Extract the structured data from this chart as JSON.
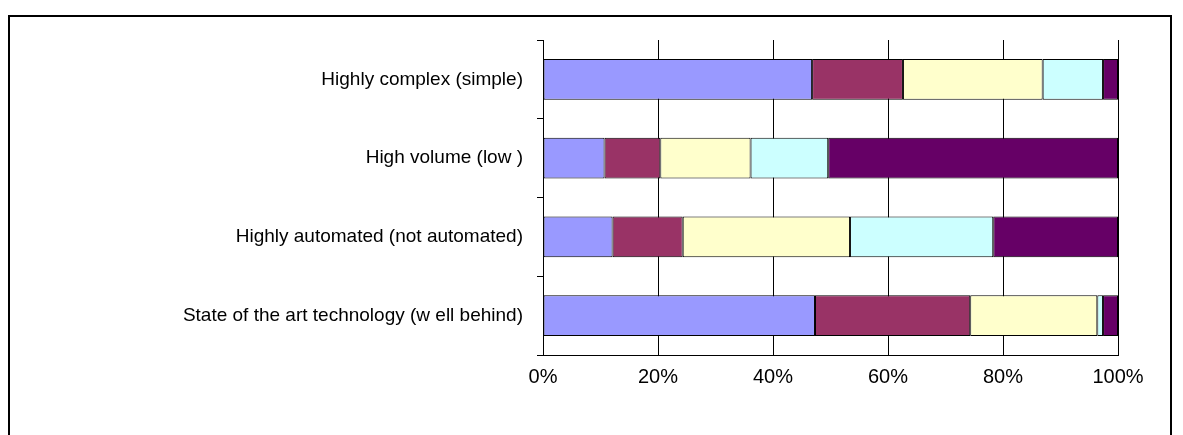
{
  "chart_data": {
    "type": "bar",
    "orientation": "horizontal",
    "stacked": true,
    "categories": [
      "Highly complex (simple)",
      "High volume (low )",
      "Highly automated (not automated)",
      "State of the art technology (w ell behind)"
    ],
    "series": [
      {
        "color": "#9999ff",
        "values": [
          46.8,
          10.7,
          12.1,
          47.3
        ]
      },
      {
        "color": "#993366",
        "values": [
          15.8,
          9.7,
          12.2,
          27.0
        ]
      },
      {
        "color": "#ffffcc",
        "values": [
          24.3,
          15.7,
          29.1,
          22.1
        ]
      },
      {
        "color": "#ccffff",
        "values": [
          10.5,
          13.5,
          24.9,
          1.0
        ]
      },
      {
        "color": "#660066",
        "values": [
          2.6,
          50.4,
          21.7,
          2.6
        ]
      }
    ],
    "xlim": [
      0,
      100
    ],
    "xticks": [
      {
        "value": 0,
        "label": "0%"
      },
      {
        "value": 20,
        "label": "20%"
      },
      {
        "value": 40,
        "label": "40%"
      },
      {
        "value": 60,
        "label": "60%"
      },
      {
        "value": 80,
        "label": "80%"
      },
      {
        "value": 100,
        "label": "100%"
      }
    ],
    "grid": "x",
    "legend": false
  }
}
